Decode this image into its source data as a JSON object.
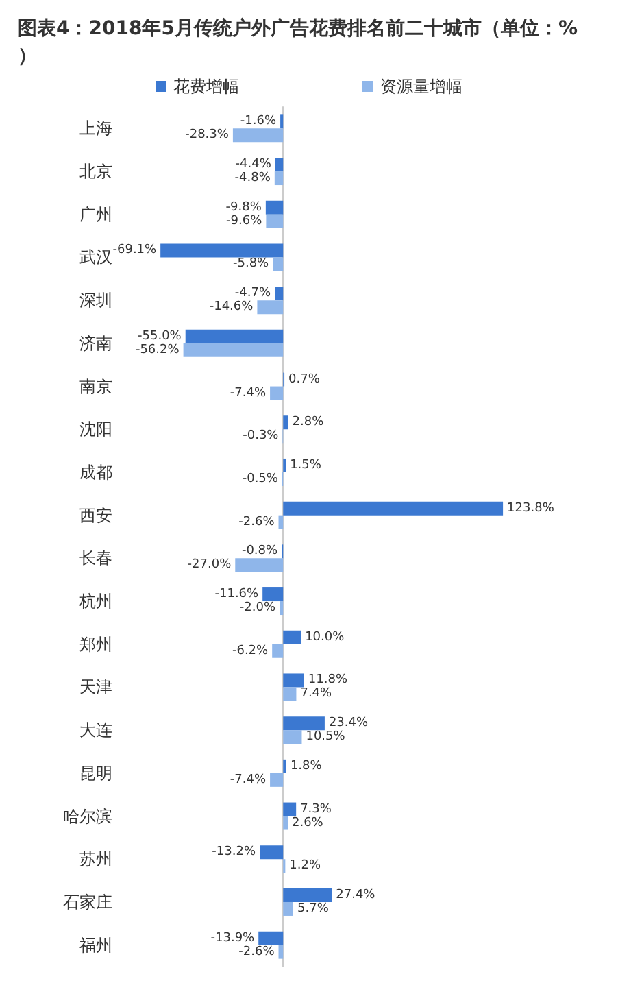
{
  "chart_data": {
    "type": "bar",
    "orientation": "horizontal",
    "title": "图表4：2018年5月传统户外广告花费排名前二十城市（单位：%）",
    "categories": [
      "上海",
      "北京",
      "广州",
      "武汉",
      "深圳",
      "济南",
      "南京",
      "沈阳",
      "成都",
      "西安",
      "长春",
      "杭州",
      "郑州",
      "天津",
      "大连",
      "昆明",
      "哈尔滨",
      "苏州",
      "石家庄",
      "福州"
    ],
    "series": [
      {
        "name": "花费增幅",
        "color": "#3b78d1",
        "values": [
          -1.6,
          -4.4,
          -9.8,
          -69.1,
          -4.7,
          -55.0,
          0.7,
          2.8,
          1.5,
          123.8,
          -0.8,
          -11.6,
          10.0,
          11.8,
          23.4,
          1.8,
          7.3,
          -13.2,
          27.4,
          -13.9
        ],
        "value_labels": [
          "-1.6%",
          "-4.4%",
          "-9.8%",
          "-69.1%",
          "-4.7%",
          "-55.0%",
          "0.7%",
          "2.8%",
          "1.5%",
          "123.8%",
          "-0.8%",
          "-11.6%",
          "10.0%",
          "11.8%",
          "23.4%",
          "1.8%",
          "7.3%",
          "-13.2%",
          "27.4%",
          "-13.9%"
        ]
      },
      {
        "name": "资源量增幅",
        "color": "#8fb6ea",
        "values": [
          -28.3,
          -4.8,
          -9.6,
          -5.8,
          -14.6,
          -56.2,
          -7.4,
          -0.3,
          -0.5,
          -2.6,
          -27.0,
          -2.0,
          -6.2,
          7.4,
          10.5,
          -7.4,
          2.6,
          1.2,
          5.7,
          -2.6
        ],
        "value_labels": [
          "-28.3%",
          "-4.8%",
          "-9.6%",
          "-5.8%",
          "-14.6%",
          "-56.2%",
          "-7.4%",
          "-0.3%",
          "-0.5%",
          "-2.6%",
          "-27.0%",
          "-2.0%",
          "-6.2%",
          "7.4%",
          "10.5%",
          "-7.4%",
          "2.6%",
          "1.2%",
          "5.7%",
          "-2.6%"
        ]
      }
    ],
    "legend": "top"
  }
}
